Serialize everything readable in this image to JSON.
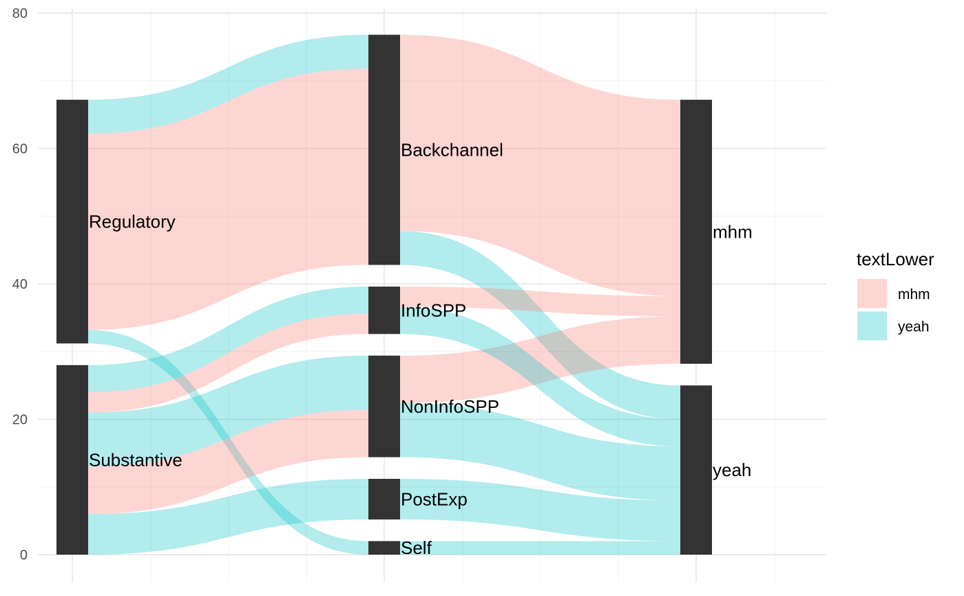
{
  "chart_data": {
    "type": "alluvial",
    "title": "",
    "xlabel": "",
    "ylabel": "",
    "ylim": [
      0,
      80
    ],
    "yticks": [
      "0",
      "20",
      "40",
      "60",
      "80"
    ],
    "grid": true,
    "legend": {
      "title": "textLower",
      "placement": "right",
      "entries": [
        {
          "name": "mhm",
          "color": "#F8766D"
        },
        {
          "name": "yeah",
          "color": "#00BFC4"
        }
      ]
    },
    "axes": [
      {
        "nodes": [
          "Substantive",
          "Regulatory"
        ]
      },
      {
        "nodes": [
          "Self",
          "PostExp",
          "NonInfoSPP",
          "InfoSPP",
          "Backchannel"
        ]
      },
      {
        "nodes": [
          "yeah",
          "mhm"
        ]
      }
    ],
    "flows": [
      {
        "color": "mhm",
        "nodes": [
          "Regulatory",
          "Backchannel",
          "mhm"
        ],
        "value": 29
      },
      {
        "color": "yeah",
        "nodes": [
          "Regulatory",
          "Backchannel",
          "yeah"
        ],
        "value": 5
      },
      {
        "color": "yeah",
        "nodes": [
          "Regulatory",
          "Self",
          "yeah"
        ],
        "value": 2
      },
      {
        "color": "mhm",
        "nodes": [
          "Substantive",
          "InfoSPP",
          "mhm"
        ],
        "value": 3
      },
      {
        "color": "mhm",
        "nodes": [
          "Substantive",
          "NonInfoSPP",
          "mhm"
        ],
        "value": 7
      },
      {
        "color": "yeah",
        "nodes": [
          "Substantive",
          "InfoSPP",
          "yeah"
        ],
        "value": 4
      },
      {
        "color": "yeah",
        "nodes": [
          "Substantive",
          "NonInfoSPP",
          "yeah"
        ],
        "value": 8
      },
      {
        "color": "yeah",
        "nodes": [
          "Substantive",
          "PostExp",
          "yeah"
        ],
        "value": 6
      }
    ]
  }
}
